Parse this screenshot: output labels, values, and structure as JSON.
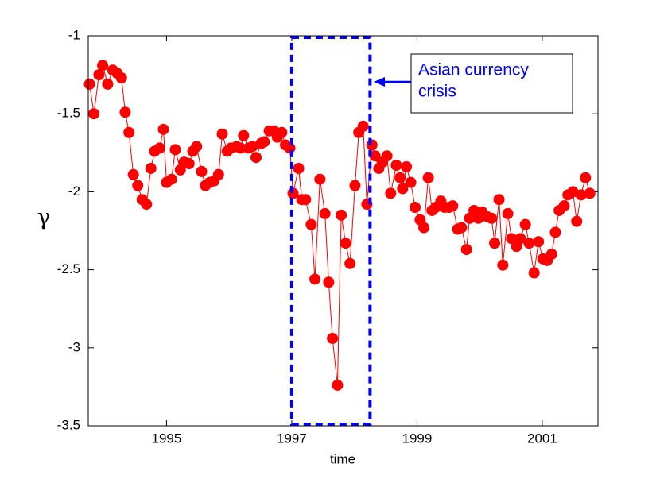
{
  "chart_data": {
    "type": "line",
    "x_label": "time",
    "y_label": "γ",
    "xlim": [
      1993.75,
      2001.89
    ],
    "ylim": [
      -3.5,
      -1
    ],
    "xticks": [
      1995,
      1997,
      1999,
      2001
    ],
    "yticks": [
      -1,
      -1.5,
      -2,
      -2.5,
      -3,
      -3.5
    ],
    "highlight": {
      "x": [
        1997.0,
        1998.25
      ],
      "color": "#0000ff"
    },
    "annotation": {
      "lines": [
        "Asian currency",
        "crisis"
      ],
      "color": "#0000ff"
    },
    "x": [
      1993.77,
      1993.84,
      1993.92,
      1993.98,
      1994.06,
      1994.14,
      1994.21,
      1994.28,
      1994.34,
      1994.4,
      1994.47,
      1994.54,
      1994.61,
      1994.68,
      1994.75,
      1994.81,
      1994.89,
      1994.95,
      1995.0,
      1995.08,
      1995.14,
      1995.22,
      1995.28,
      1995.36,
      1995.42,
      1995.48,
      1995.56,
      1995.62,
      1995.69,
      1995.76,
      1995.83,
      1995.89,
      1995.97,
      1996.03,
      1996.12,
      1996.18,
      1996.23,
      1996.31,
      1996.37,
      1996.43,
      1996.51,
      1996.56,
      1996.64,
      1996.71,
      1996.77,
      1996.84,
      1996.9,
      1996.97,
      1997.02,
      1997.11,
      1997.16,
      1997.22,
      1997.31,
      1997.37,
      1997.45,
      1997.53,
      1997.59,
      1997.65,
      1997.73,
      1997.79,
      1997.86,
      1997.93,
      1998.01,
      1998.07,
      1998.14,
      1998.2,
      1998.28,
      1998.33,
      1998.39,
      1998.45,
      1998.52,
      1998.58,
      1998.67,
      1998.73,
      1998.77,
      1998.83,
      1998.9,
      1998.97,
      1999.05,
      1999.11,
      1999.18,
      1999.24,
      1999.3,
      1999.38,
      1999.44,
      1999.51,
      1999.57,
      1999.65,
      1999.71,
      1999.79,
      1999.84,
      1999.91,
      1999.98,
      2000.04,
      2000.12,
      2000.19,
      2000.24,
      2000.31,
      2000.37,
      2000.45,
      2000.51,
      2000.59,
      2000.65,
      2000.73,
      2000.79,
      2000.87,
      2000.94,
      2001.01,
      2001.08,
      2001.15,
      2001.21,
      2001.27,
      2001.35,
      2001.41,
      2001.49,
      2001.55,
      2001.62,
      2001.69,
      2001.76
    ],
    "series": [
      {
        "color": "#ff0000",
        "values": [
          -1.31,
          -1.5,
          -1.25,
          -1.19,
          -1.31,
          -1.22,
          -1.24,
          -1.27,
          -1.49,
          -1.62,
          -1.89,
          -1.96,
          -2.05,
          -2.08,
          -1.85,
          -1.74,
          -1.72,
          -1.6,
          -1.94,
          -1.92,
          -1.73,
          -1.86,
          -1.81,
          -1.82,
          -1.74,
          -1.71,
          -1.87,
          -1.96,
          -1.94,
          -1.93,
          -1.89,
          -1.63,
          -1.74,
          -1.72,
          -1.71,
          -1.72,
          -1.64,
          -1.72,
          -1.71,
          -1.78,
          -1.69,
          -1.68,
          -1.61,
          -1.61,
          -1.65,
          -1.62,
          -1.7,
          -1.72,
          -2.01,
          -1.85,
          -2.05,
          -2.05,
          -2.21,
          -2.56,
          -1.92,
          -2.14,
          -2.58,
          -2.94,
          -3.24,
          -2.15,
          -2.33,
          -2.46,
          -1.96,
          -1.62,
          -1.58,
          -2.08,
          -1.7,
          -1.77,
          -1.85,
          -1.81,
          -1.77,
          -2.01,
          -1.83,
          -1.91,
          -1.98,
          -1.84,
          -1.94,
          -2.1,
          -2.18,
          -2.23,
          -1.91,
          -2.12,
          -2.1,
          -2.06,
          -2.1,
          -2.1,
          -2.09,
          -2.24,
          -2.23,
          -2.37,
          -2.17,
          -2.12,
          -2.17,
          -2.13,
          -2.16,
          -2.17,
          -2.33,
          -2.05,
          -2.47,
          -2.14,
          -2.3,
          -2.35,
          -2.3,
          -2.21,
          -2.33,
          -2.52,
          -2.32,
          -2.43,
          -2.44,
          -2.4,
          -2.26,
          -2.12,
          -2.09,
          -2.02,
          -2.0,
          -2.19,
          -2.02,
          -1.91,
          -2.01
        ]
      }
    ]
  }
}
